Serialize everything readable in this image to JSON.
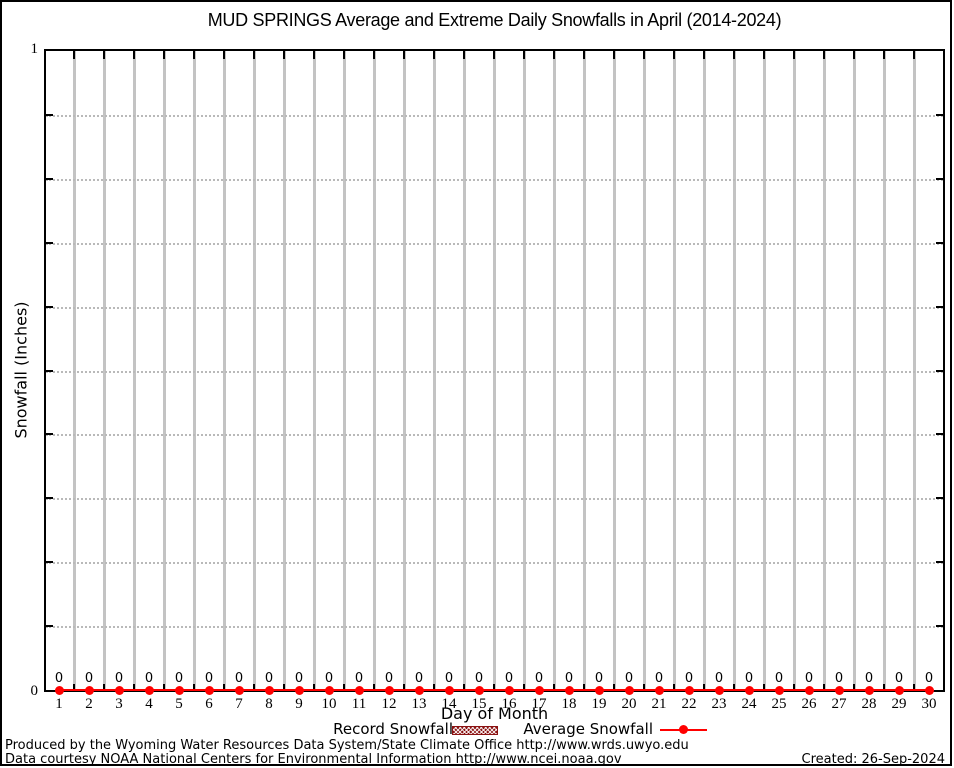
{
  "title": "MUD SPRINGS Average and Extreme Daily Snowfalls in April (2014-2024)",
  "chart_data": {
    "type": "line",
    "title": "MUD SPRINGS Average and Extreme Daily Snowfalls in April (2014-2024)",
    "xlabel": "Day of Month",
    "ylabel": "Snowfall (Inches)",
    "xlim": [
      0.5,
      30.5
    ],
    "ylim": [
      0,
      1
    ],
    "y_major_tick_labels": [
      "1",
      "0"
    ],
    "y_minor_tick_step": 0.1,
    "grid": {
      "vertical_lines_at_half_days": true,
      "horizontal_dotted_step": 0.1
    },
    "legend_position": "below-plot",
    "categories": [
      1,
      2,
      3,
      4,
      5,
      6,
      7,
      8,
      9,
      10,
      11,
      12,
      13,
      14,
      15,
      16,
      17,
      18,
      19,
      20,
      21,
      22,
      23,
      24,
      25,
      26,
      27,
      28,
      29,
      30
    ],
    "series": [
      {
        "name": "Record Snowfall",
        "type": "bar-hatched",
        "color": "#8b1212",
        "values": [
          0,
          0,
          0,
          0,
          0,
          0,
          0,
          0,
          0,
          0,
          0,
          0,
          0,
          0,
          0,
          0,
          0,
          0,
          0,
          0,
          0,
          0,
          0,
          0,
          0,
          0,
          0,
          0,
          0,
          0
        ]
      },
      {
        "name": "Average Snowfall",
        "type": "line",
        "marker": "filled-circle",
        "color": "#ff0000",
        "values": [
          0,
          0,
          0,
          0,
          0,
          0,
          0,
          0,
          0,
          0,
          0,
          0,
          0,
          0,
          0,
          0,
          0,
          0,
          0,
          0,
          0,
          0,
          0,
          0,
          0,
          0,
          0,
          0,
          0,
          0
        ]
      }
    ],
    "point_labels": [
      "0",
      "0",
      "0",
      "0",
      "0",
      "0",
      "0",
      "0",
      "0",
      "0",
      "0",
      "0",
      "0",
      "0",
      "0",
      "0",
      "0",
      "0",
      "0",
      "0",
      "0",
      "0",
      "0",
      "0",
      "0",
      "0",
      "0",
      "0",
      "0",
      "0"
    ]
  },
  "axis": {
    "y_top_label": "1",
    "y_bottom_label": "0"
  },
  "legend": {
    "record_label": "Record Snowfall",
    "average_label": "Average Snowfall"
  },
  "footer": {
    "line1": "Produced by the Wyoming Water Resources Data System/State Climate Office http://www.wrds.uwyo.edu",
    "line2": "Data courtesy NOAA National Centers for Environmental Information http://www.ncei.noaa.gov",
    "created": "Created: 26-Sep-2024"
  },
  "colors": {
    "average_line": "#ff0000",
    "record_fill": "#8b1212",
    "vertical_grid": "#c3c3c3",
    "dotted_grid": "#b9b9b9",
    "axis": "#000000"
  }
}
